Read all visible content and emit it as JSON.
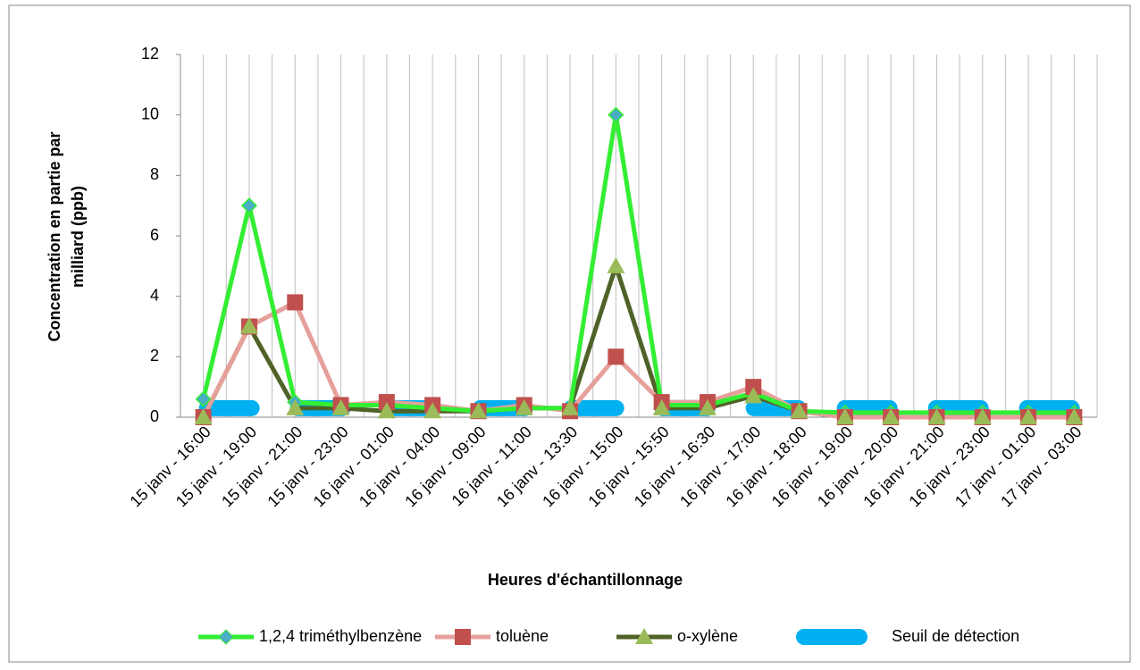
{
  "chart_data": {
    "type": "line",
    "x_label": "Heures d'échantillonnage",
    "y_label": [
      "Concentration en partie par",
      "milliard (ppb)"
    ],
    "categories": [
      "15 janv - 16:00",
      "15 janv - 19:00",
      "15 janv - 21:00",
      "15 janv - 23:00",
      "16 janv - 01:00",
      "16 janv - 04:00",
      "16 janv - 09:00",
      "16 janv - 11:00",
      "16 janv - 13:30",
      "16 janv - 15:00",
      "16 janv - 15:50",
      "16 janv - 16:30",
      "16 janv - 17:00",
      "16 janv - 18:00",
      "16 janv - 19:00",
      "16 janv - 20:00",
      "16 janv - 21:00",
      "16 janv - 23:00",
      "17 janv - 01:00",
      "17 janv - 03:00"
    ],
    "series": [
      {
        "name": "1,2,4 triméthylbenzène",
        "color": "#33ee33",
        "marker": "diamond",
        "marker_color": "#4bacc6",
        "values": [
          0.6,
          7,
          0.5,
          0.4,
          0.4,
          0.3,
          0.2,
          0.3,
          0.3,
          10,
          0.4,
          0.4,
          0.8,
          0.2,
          0.15,
          0.15,
          0.15,
          0.15,
          0.15,
          0.15
        ]
      },
      {
        "name": "toluène",
        "color": "#e6a09c",
        "marker": "square",
        "marker_color": "#c0504d",
        "values": [
          0,
          3,
          3.8,
          0.4,
          0.5,
          0.4,
          0.2,
          0.4,
          0.2,
          2,
          0.5,
          0.5,
          1,
          0.2,
          0,
          0,
          0,
          0,
          0,
          0
        ]
      },
      {
        "name": "o-xylène",
        "color": "#4f6228",
        "marker": "triangle",
        "marker_color": "#9bbb59",
        "values": [
          0,
          3,
          0.3,
          0.3,
          0.2,
          0.2,
          0.2,
          0.3,
          0.3,
          5,
          0.3,
          0.3,
          0.7,
          0.2,
          0,
          0,
          0,
          0,
          0,
          0
        ]
      },
      {
        "name": "Seuil de détection",
        "color": "#00b0f0",
        "marker": "none",
        "dashed": true,
        "values": [
          0.3,
          0.3,
          0.3,
          0.3,
          0.3,
          0.3,
          0.3,
          0.3,
          0.3,
          0.3,
          0.3,
          0.3,
          0.3,
          0.3,
          0.3,
          0.3,
          0.3,
          0.3,
          0.3,
          0.3
        ]
      }
    ],
    "ylim": [
      0,
      12
    ],
    "yticks": [
      0,
      2,
      4,
      6,
      8,
      10,
      12
    ],
    "grid": true,
    "legend": "bottom"
  }
}
